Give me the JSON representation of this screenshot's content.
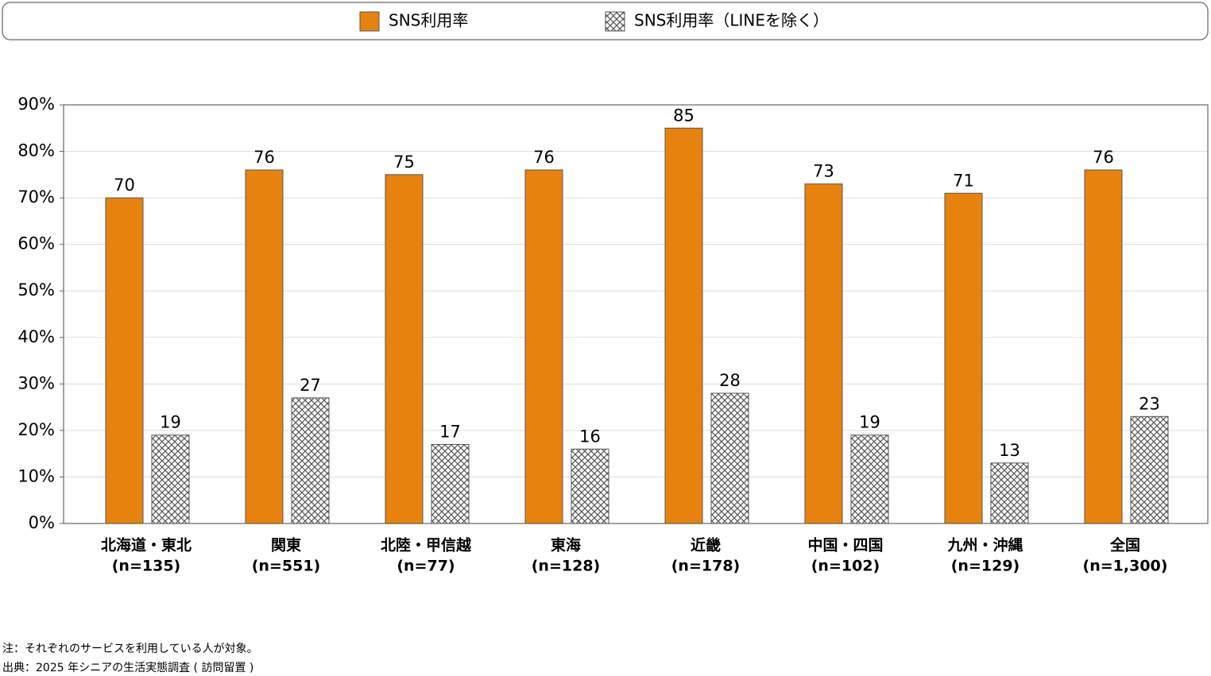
{
  "chart_data": {
    "type": "bar",
    "categories": [
      [
        "北海道・東北",
        "(n=135)"
      ],
      [
        "関東",
        "(n=551)"
      ],
      [
        "北陸・甲信越",
        "(n=77)"
      ],
      [
        "東海",
        "(n=128)"
      ],
      [
        "近畿",
        "(n=178)"
      ],
      [
        "中国・四国",
        "(n=102)"
      ],
      [
        "九州・沖縄",
        "(n=129)"
      ],
      [
        "全国",
        "(n=1,300)"
      ]
    ],
    "series": [
      {
        "name": "SNS利用率",
        "color": "#e8820f",
        "pattern": "solid",
        "values": [
          70,
          76,
          75,
          76,
          85,
          73,
          71,
          76
        ]
      },
      {
        "name": "SNS利用率（LINEを除く）",
        "color": "#555555",
        "pattern": "crosshatch",
        "values": [
          19,
          27,
          17,
          16,
          28,
          19,
          13,
          23
        ]
      }
    ],
    "ylim": [
      0,
      90
    ],
    "yticks": [
      {
        "value": 0,
        "label": "0%"
      },
      {
        "value": 10,
        "label": "10%"
      },
      {
        "value": 20,
        "label": "20%"
      },
      {
        "value": 30,
        "label": "30%"
      },
      {
        "value": 40,
        "label": "40%"
      },
      {
        "value": 50,
        "label": "50%"
      },
      {
        "value": 60,
        "label": "60%"
      },
      {
        "value": 70,
        "label": "70%"
      },
      {
        "value": 80,
        "label": "80%"
      },
      {
        "value": 90,
        "label": "90%"
      }
    ],
    "grid": true,
    "legend": "top",
    "notes": [
      "注：それぞれのサービスを利用している人が対象。",
      "出典：2025 年シニアの生活実態調査 ( 訪問留置 )"
    ]
  }
}
